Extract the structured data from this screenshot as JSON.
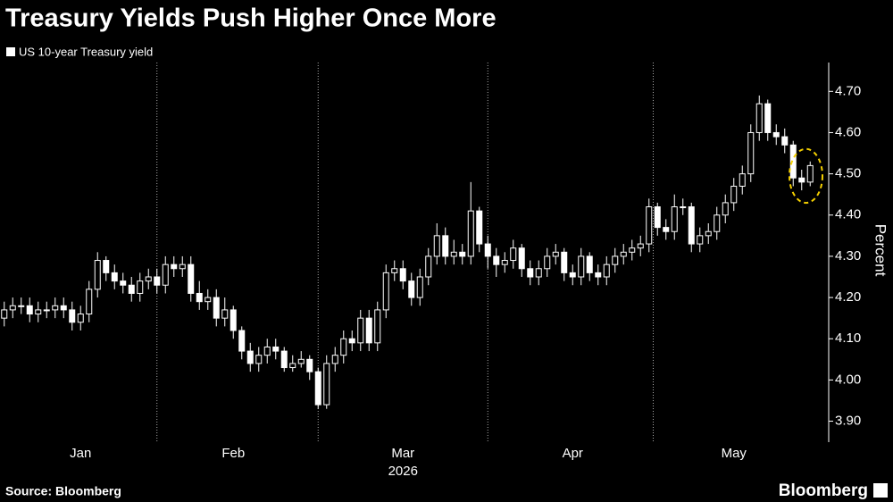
{
  "chart_data": {
    "type": "candlestick",
    "title": "Treasury Yields Push Higher Once More",
    "legend_label": "US 10-year Treasury yield",
    "y_label": "Percent",
    "x_year_label": "2026",
    "source": "Source: Bloomberg",
    "brand": "Bloomberg",
    "color": "#ffffff",
    "up_fill": "#000000",
    "down_fill": "#ffffff",
    "annotation_color": "#f5d000",
    "grid": false,
    "categories": [
      null,
      null,
      null,
      null,
      null,
      null,
      null,
      null,
      null,
      "Jan",
      null,
      null,
      null,
      null,
      null,
      null,
      null,
      null,
      null,
      null,
      null,
      null,
      null,
      null,
      null,
      null,
      null,
      "Feb",
      null,
      null,
      null,
      null,
      null,
      null,
      null,
      null,
      null,
      null,
      null,
      null,
      null,
      null,
      null,
      null,
      null,
      null,
      null,
      "Mar",
      null,
      null,
      null,
      null,
      null,
      null,
      null,
      null,
      null,
      null,
      null,
      null,
      null,
      null,
      null,
      null,
      null,
      null,
      null,
      "Apr",
      null,
      null,
      null,
      null,
      null,
      null,
      null,
      null,
      null,
      null,
      null,
      null,
      null,
      null,
      null,
      null,
      null,
      null,
      "May",
      null,
      null,
      null,
      null,
      null,
      null,
      null,
      null,
      null
    ],
    "open": [
      4.15,
      4.17,
      4.18,
      4.18,
      4.16,
      4.17,
      4.17,
      4.18,
      4.17,
      4.14,
      4.16,
      4.22,
      4.29,
      4.26,
      4.24,
      4.23,
      4.21,
      4.24,
      4.25,
      4.23,
      4.28,
      4.27,
      4.28,
      4.21,
      4.19,
      4.2,
      4.15,
      4.17,
      4.12,
      4.07,
      4.04,
      4.06,
      4.08,
      4.07,
      4.03,
      4.04,
      4.05,
      4.02,
      3.94,
      4.04,
      4.06,
      4.1,
      4.09,
      4.15,
      4.09,
      4.17,
      4.26,
      4.27,
      4.24,
      4.2,
      4.25,
      4.3,
      4.35,
      4.3,
      4.31,
      4.3,
      4.41,
      4.33,
      4.3,
      4.28,
      4.29,
      4.32,
      4.27,
      4.25,
      4.27,
      4.3,
      4.31,
      4.26,
      4.25,
      4.3,
      4.26,
      4.25,
      4.28,
      4.3,
      4.31,
      4.32,
      4.33,
      4.42,
      4.37,
      4.36,
      4.42,
      4.42,
      4.33,
      4.35,
      4.36,
      4.4,
      4.43,
      4.47,
      4.5,
      4.6,
      4.67,
      4.6,
      4.59,
      4.57,
      4.49,
      4.48
    ],
    "high": [
      4.19,
      4.2,
      4.2,
      4.2,
      4.19,
      4.19,
      4.2,
      4.2,
      4.19,
      4.18,
      4.24,
      4.31,
      4.3,
      4.28,
      4.26,
      4.25,
      4.26,
      4.27,
      4.27,
      4.3,
      4.3,
      4.3,
      4.3,
      4.24,
      4.22,
      4.22,
      4.2,
      4.18,
      4.13,
      4.09,
      4.08,
      4.1,
      4.1,
      4.08,
      4.06,
      4.07,
      4.06,
      4.03,
      4.06,
      4.08,
      4.12,
      4.12,
      4.17,
      4.17,
      4.19,
      4.28,
      4.29,
      4.29,
      4.26,
      4.27,
      4.32,
      4.38,
      4.37,
      4.34,
      4.33,
      4.48,
      4.42,
      4.35,
      4.32,
      4.31,
      4.34,
      4.33,
      4.29,
      4.29,
      4.32,
      4.33,
      4.32,
      4.28,
      4.32,
      4.31,
      4.28,
      4.3,
      4.32,
      4.33,
      4.34,
      4.35,
      4.44,
      4.43,
      4.39,
      4.45,
      4.44,
      4.43,
      4.37,
      4.38,
      4.42,
      4.45,
      4.49,
      4.52,
      4.62,
      4.69,
      4.68,
      4.62,
      4.61,
      4.58,
      4.51,
      4.53
    ],
    "low": [
      4.13,
      4.15,
      4.16,
      4.14,
      4.14,
      4.15,
      4.15,
      4.15,
      4.12,
      4.12,
      4.14,
      4.2,
      4.24,
      4.22,
      4.21,
      4.19,
      4.19,
      4.22,
      4.21,
      4.21,
      4.25,
      4.25,
      4.19,
      4.17,
      4.17,
      4.13,
      4.13,
      4.1,
      4.05,
      4.02,
      4.02,
      4.04,
      4.05,
      4.02,
      4.02,
      4.03,
      4.0,
      3.93,
      3.93,
      4.02,
      4.04,
      4.07,
      4.07,
      4.07,
      4.07,
      4.15,
      4.24,
      4.22,
      4.18,
      4.18,
      4.23,
      4.28,
      4.28,
      4.28,
      4.28,
      4.28,
      4.31,
      4.27,
      4.25,
      4.26,
      4.27,
      4.25,
      4.23,
      4.23,
      4.25,
      4.28,
      4.24,
      4.23,
      4.23,
      4.24,
      4.23,
      4.23,
      4.26,
      4.28,
      4.29,
      4.3,
      4.31,
      4.35,
      4.34,
      4.34,
      4.4,
      4.31,
      4.31,
      4.33,
      4.34,
      4.38,
      4.41,
      4.45,
      4.48,
      4.58,
      4.58,
      4.57,
      4.55,
      4.47,
      4.46,
      4.47
    ],
    "close": [
      4.17,
      4.18,
      4.18,
      4.16,
      4.17,
      4.17,
      4.18,
      4.17,
      4.14,
      4.16,
      4.22,
      4.29,
      4.26,
      4.24,
      4.23,
      4.21,
      4.24,
      4.25,
      4.23,
      4.28,
      4.27,
      4.28,
      4.21,
      4.19,
      4.2,
      4.15,
      4.17,
      4.12,
      4.07,
      4.04,
      4.06,
      4.08,
      4.07,
      4.03,
      4.04,
      4.05,
      4.02,
      3.94,
      4.04,
      4.06,
      4.1,
      4.09,
      4.15,
      4.09,
      4.17,
      4.26,
      4.27,
      4.24,
      4.2,
      4.25,
      4.3,
      4.35,
      4.3,
      4.31,
      4.3,
      4.41,
      4.33,
      4.3,
      4.28,
      4.29,
      4.32,
      4.27,
      4.25,
      4.27,
      4.3,
      4.31,
      4.26,
      4.25,
      4.3,
      4.26,
      4.25,
      4.28,
      4.3,
      4.31,
      4.32,
      4.33,
      4.42,
      4.37,
      4.36,
      4.42,
      4.42,
      4.33,
      4.35,
      4.36,
      4.4,
      4.43,
      4.47,
      4.5,
      4.6,
      4.67,
      4.6,
      4.59,
      4.57,
      4.49,
      4.48,
      4.52
    ],
    "ylim": [
      3.86,
      4.77
    ],
    "yticks": [
      {
        "value": 3.9,
        "label": "3.90"
      },
      {
        "value": 4.0,
        "label": "4.00"
      },
      {
        "value": 4.1,
        "label": "4.10"
      },
      {
        "value": 4.2,
        "label": "4.20"
      },
      {
        "value": 4.3,
        "label": "4.30"
      },
      {
        "value": 4.4,
        "label": "4.40"
      },
      {
        "value": 4.5,
        "label": "4.50"
      },
      {
        "value": 4.6,
        "label": "4.60"
      },
      {
        "value": 4.7,
        "label": "4.70"
      }
    ]
  }
}
